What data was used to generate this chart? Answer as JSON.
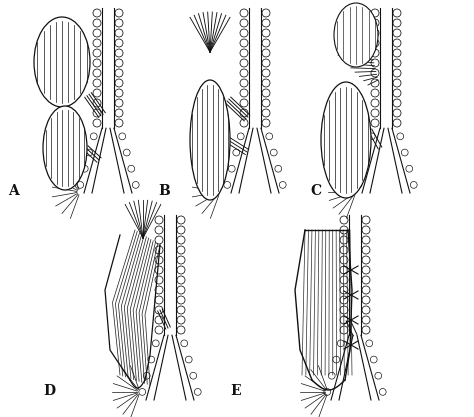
{
  "figure_width": 4.74,
  "figure_height": 4.17,
  "dpi": 100,
  "background_color": "#ffffff",
  "labels": [
    "A",
    "B",
    "C",
    "D",
    "E"
  ],
  "label_fontsize": 10,
  "label_fontweight": "bold",
  "line_color": "#111111"
}
